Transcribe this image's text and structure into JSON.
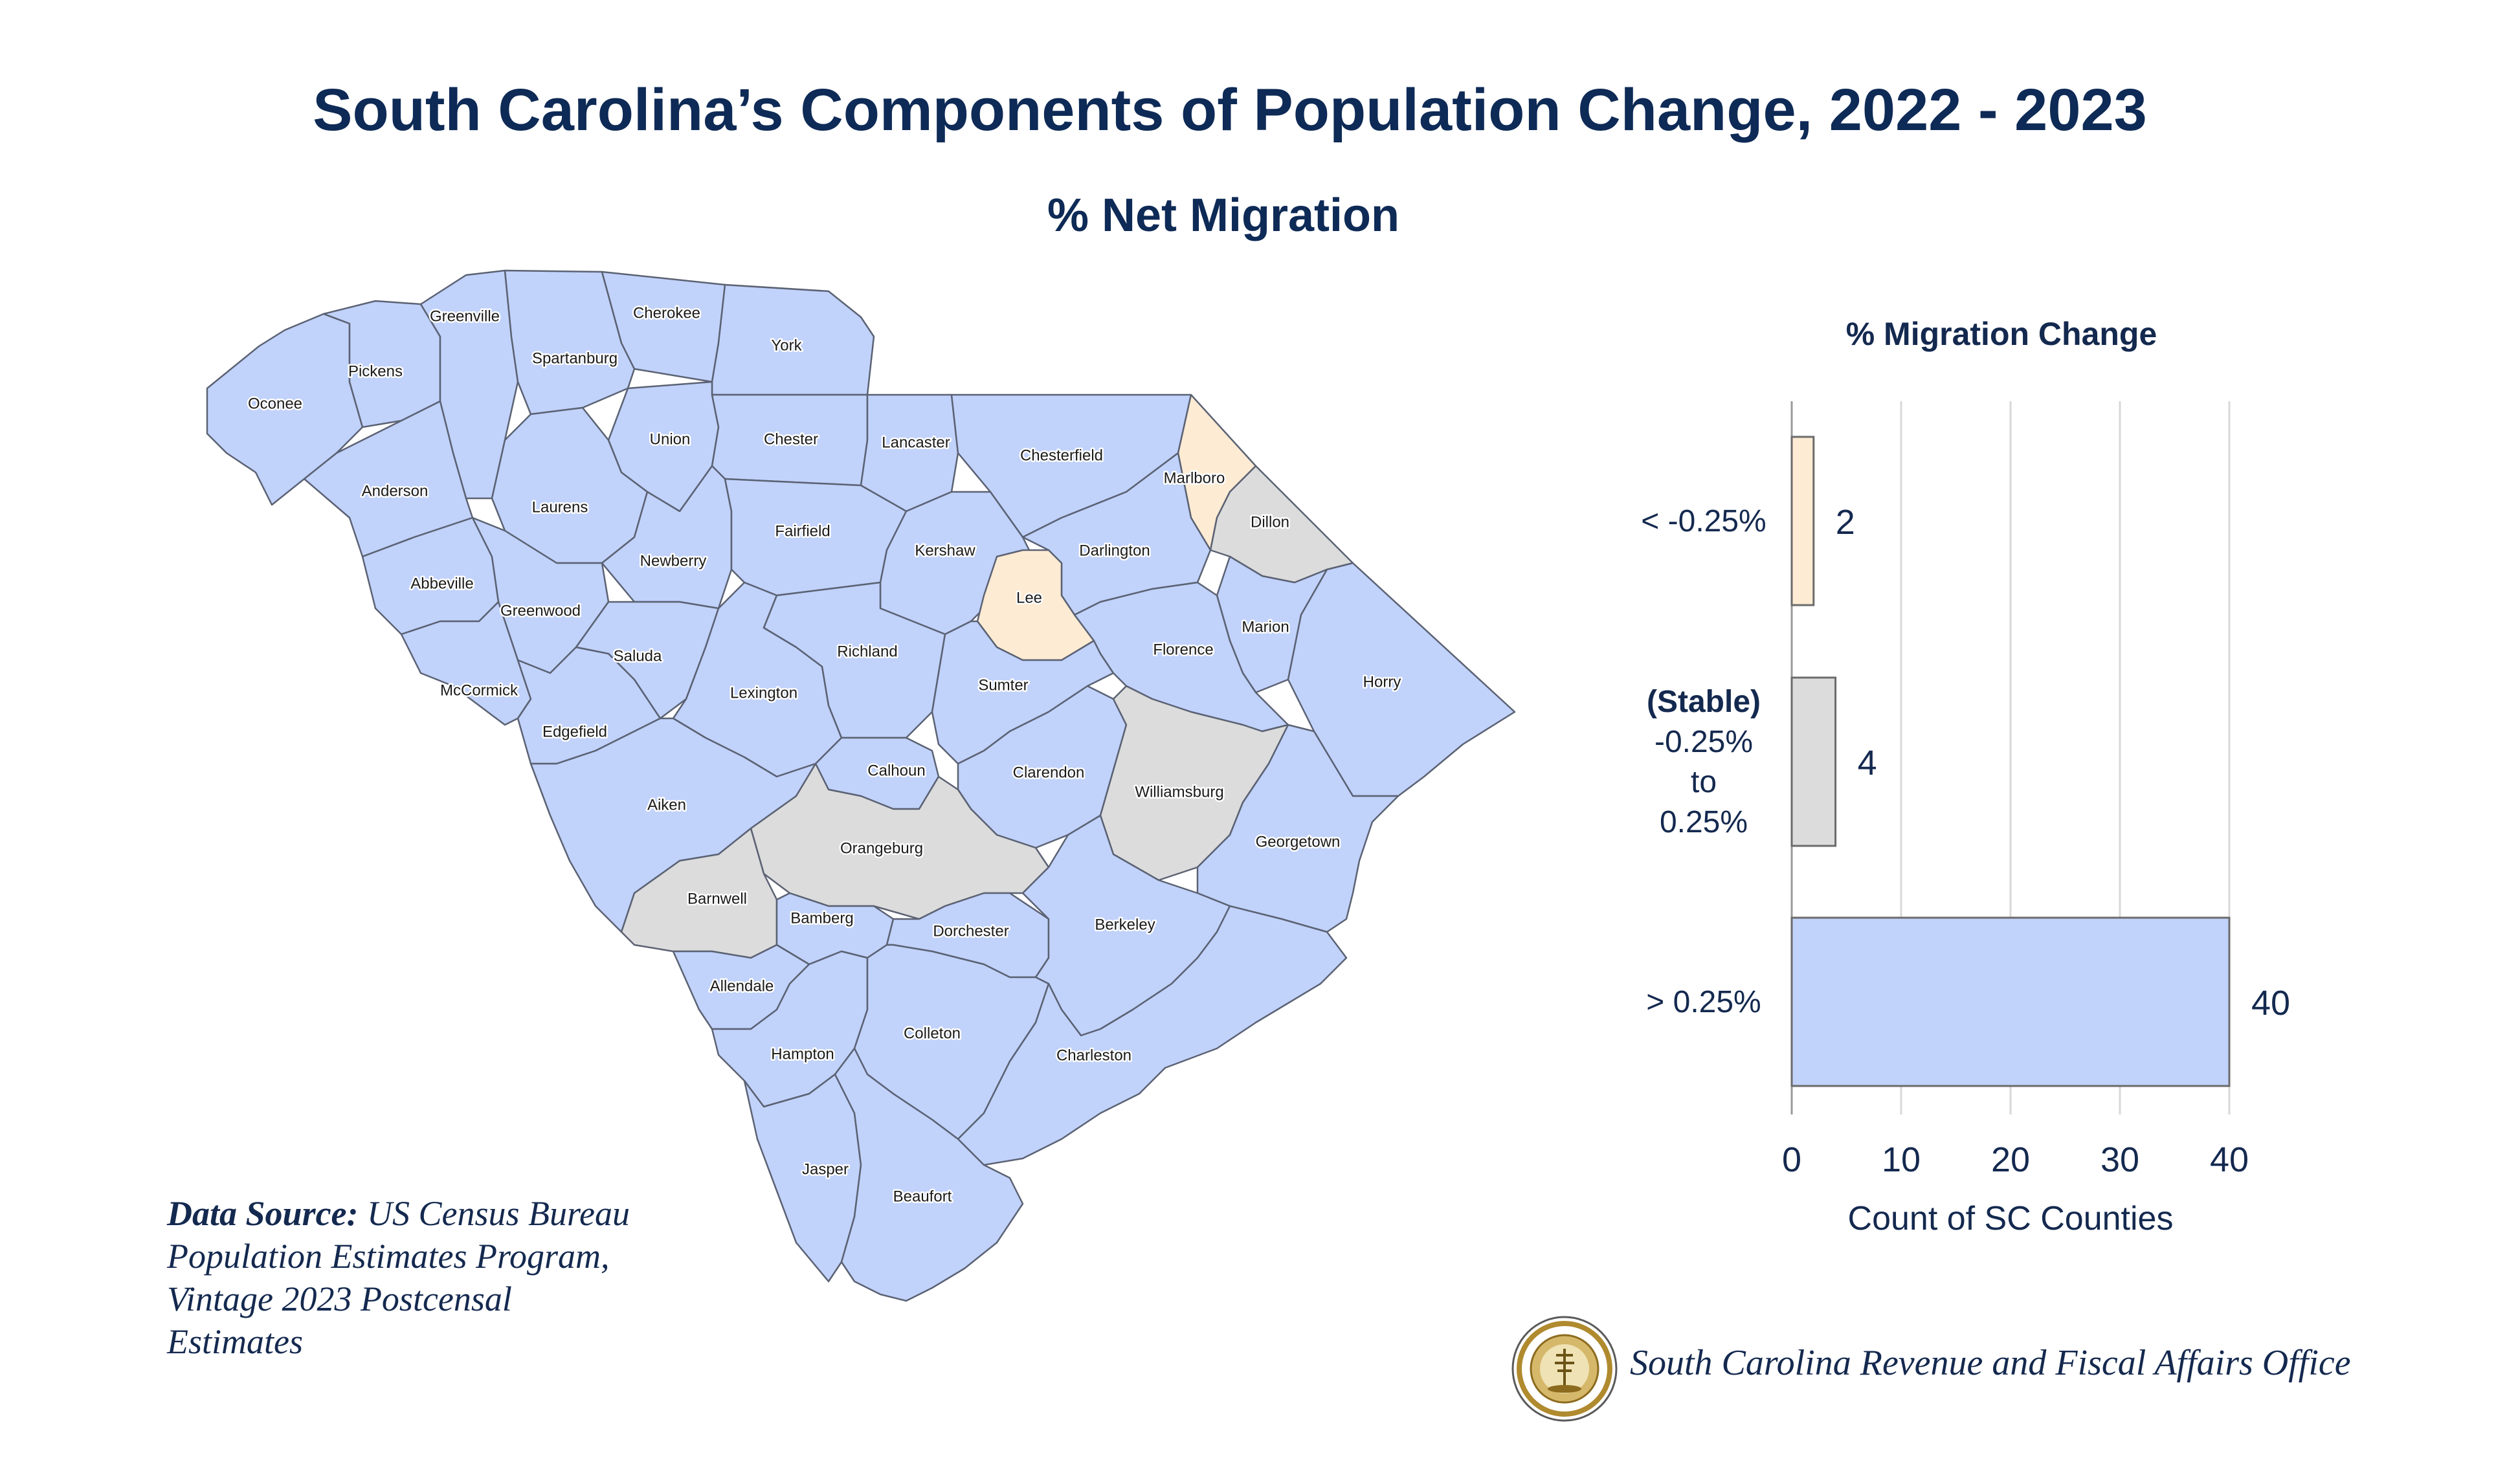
{
  "title": "South Carolina’s Components of Population Change, 2022 - 2023",
  "subtitle": "% Net Migration",
  "colors": {
    "gt": "#c1d2fb",
    "stable": "#dcdcdc",
    "lt": "#fdebd3"
  },
  "counties": [
    {
      "name": "Oconee",
      "cat": "gt"
    },
    {
      "name": "Pickens",
      "cat": "gt"
    },
    {
      "name": "Greenville",
      "cat": "gt"
    },
    {
      "name": "Spartanburg",
      "cat": "gt"
    },
    {
      "name": "Cherokee",
      "cat": "gt"
    },
    {
      "name": "York",
      "cat": "gt"
    },
    {
      "name": "Anderson",
      "cat": "gt"
    },
    {
      "name": "Union",
      "cat": "gt"
    },
    {
      "name": "Chester",
      "cat": "gt"
    },
    {
      "name": "Lancaster",
      "cat": "gt"
    },
    {
      "name": "Chesterfield",
      "cat": "gt"
    },
    {
      "name": "Marlboro",
      "cat": "lt"
    },
    {
      "name": "Dillon",
      "cat": "stable"
    },
    {
      "name": "Laurens",
      "cat": "gt"
    },
    {
      "name": "Abbeville",
      "cat": "gt"
    },
    {
      "name": "Greenwood",
      "cat": "gt"
    },
    {
      "name": "Newberry",
      "cat": "gt"
    },
    {
      "name": "Fairfield",
      "cat": "gt"
    },
    {
      "name": "Kershaw",
      "cat": "gt"
    },
    {
      "name": "Darlington",
      "cat": "gt"
    },
    {
      "name": "Lee",
      "cat": "lt"
    },
    {
      "name": "Marion",
      "cat": "gt"
    },
    {
      "name": "Horry",
      "cat": "gt"
    },
    {
      "name": "McCormick",
      "cat": "gt"
    },
    {
      "name": "Edgefield",
      "cat": "gt"
    },
    {
      "name": "Saluda",
      "cat": "gt"
    },
    {
      "name": "Lexington",
      "cat": "gt"
    },
    {
      "name": "Richland",
      "cat": "gt"
    },
    {
      "name": "Sumter",
      "cat": "gt"
    },
    {
      "name": "Florence",
      "cat": "gt"
    },
    {
      "name": "Aiken",
      "cat": "gt"
    },
    {
      "name": "Calhoun",
      "cat": "gt"
    },
    {
      "name": "Clarendon",
      "cat": "gt"
    },
    {
      "name": "Williamsburg",
      "cat": "stable"
    },
    {
      "name": "Georgetown",
      "cat": "gt"
    },
    {
      "name": "Orangeburg",
      "cat": "stable"
    },
    {
      "name": "Barnwell",
      "cat": "stable"
    },
    {
      "name": "Bamberg",
      "cat": "gt"
    },
    {
      "name": "Dorchester",
      "cat": "gt"
    },
    {
      "name": "Berkeley",
      "cat": "gt"
    },
    {
      "name": "Allendale",
      "cat": "gt"
    },
    {
      "name": "Hampton",
      "cat": "gt"
    },
    {
      "name": "Colleton",
      "cat": "gt"
    },
    {
      "name": "Charleston",
      "cat": "gt"
    },
    {
      "name": "Jasper",
      "cat": "gt"
    },
    {
      "name": "Beaufort",
      "cat": "gt"
    }
  ],
  "chart_data": {
    "type": "bar",
    "orientation": "horizontal",
    "title": "% Migration Change",
    "categories": [
      "< -0.25%",
      "(Stable) -0.25% to 0.25%",
      "> 0.25%"
    ],
    "category_lines": [
      [
        "< -0.25%"
      ],
      [
        "(Stable)",
        "-0.25%",
        "to",
        "0.25%"
      ],
      [
        "> 0.25%"
      ]
    ],
    "values": [
      2,
      4,
      40
    ],
    "value_labels": [
      "2",
      "4",
      "40"
    ],
    "bar_colors": [
      "#fdebd3",
      "#dcdcdc",
      "#c1d2fb"
    ],
    "xlabel": "Count of SC Counties",
    "xticks": [
      "0",
      "10",
      "20",
      "30",
      "40"
    ],
    "xlim": [
      0,
      40
    ],
    "grid": true
  },
  "source_label": "Data Source:",
  "source_text": " US Census Bureau Population Estimates Program, Vintage 2023 Postcensal Estimates",
  "agency": "South Carolina Revenue and Fiscal Affairs Office"
}
